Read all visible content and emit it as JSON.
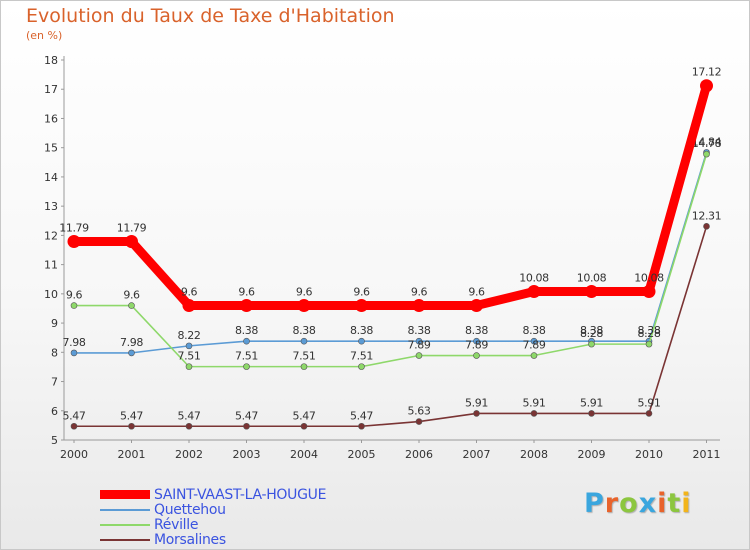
{
  "chart_data": {
    "type": "line",
    "title": "Evolution du Taux de Taxe d'Habitation",
    "ylabel": "(en %)",
    "xlabel": "",
    "categories": [
      "2000",
      "2001",
      "2002",
      "2003",
      "2004",
      "2005",
      "2006",
      "2007",
      "2008",
      "2009",
      "2010",
      "2011"
    ],
    "ylim": [
      5,
      18
    ],
    "yticks": [
      5,
      6,
      7,
      8,
      9,
      10,
      11,
      12,
      13,
      14,
      15,
      16,
      17,
      18
    ],
    "grid": false,
    "legend": "bottom-left",
    "series": [
      {
        "name": "SAINT-VAAST-LA-HOUGUE",
        "color": "#ff0000",
        "emphasis": true,
        "values": [
          11.79,
          11.79,
          9.6,
          9.6,
          9.6,
          9.6,
          9.6,
          9.6,
          10.08,
          10.08,
          10.08,
          17.12
        ],
        "labels": [
          "11.79",
          "11.79",
          "9.6",
          "9.6",
          "9.6",
          "9.6",
          "9.6",
          "9.6",
          "10.08",
          "10.08",
          "10.08",
          "17.12"
        ]
      },
      {
        "name": "Quettehou",
        "color": "#5b9bd5",
        "values": [
          7.98,
          7.98,
          8.22,
          8.38,
          8.38,
          8.38,
          8.38,
          8.38,
          8.38,
          8.38,
          8.38,
          14.84
        ],
        "labels": [
          "7.98",
          "7.98",
          "8.22",
          "8.38",
          "8.38",
          "8.38",
          "8.38",
          "8.38",
          "8.38",
          "8.38",
          "8.38",
          "14.84"
        ]
      },
      {
        "name": "Réville",
        "color": "#8ed86a",
        "values": [
          9.6,
          9.6,
          7.51,
          7.51,
          7.51,
          7.51,
          7.89,
          7.89,
          7.89,
          8.28,
          8.28,
          14.78
        ],
        "labels": [
          "9.6",
          "9.6",
          "7.51",
          "7.51",
          "7.51",
          "7.51",
          "7.89",
          "7.89",
          "7.89",
          "8.28",
          "8.28",
          "14.78"
        ]
      },
      {
        "name": "Morsalines",
        "color": "#7a3434",
        "values": [
          5.47,
          5.47,
          5.47,
          5.47,
          5.47,
          5.47,
          5.63,
          5.91,
          5.91,
          5.91,
          5.91,
          12.31
        ],
        "labels": [
          "5.47",
          "5.47",
          "5.47",
          "5.47",
          "5.47",
          "5.47",
          "5.63",
          "5.91",
          "5.91",
          "5.91",
          "5.91",
          "12.31"
        ]
      }
    ]
  },
  "branding": {
    "logo_text": "Proxiti",
    "logo_colors": [
      "#3aa6de",
      "#e8632b",
      "#8cc63f",
      "#3aa6de",
      "#e8632b",
      "#8cc63f",
      "#f2b41b"
    ]
  }
}
